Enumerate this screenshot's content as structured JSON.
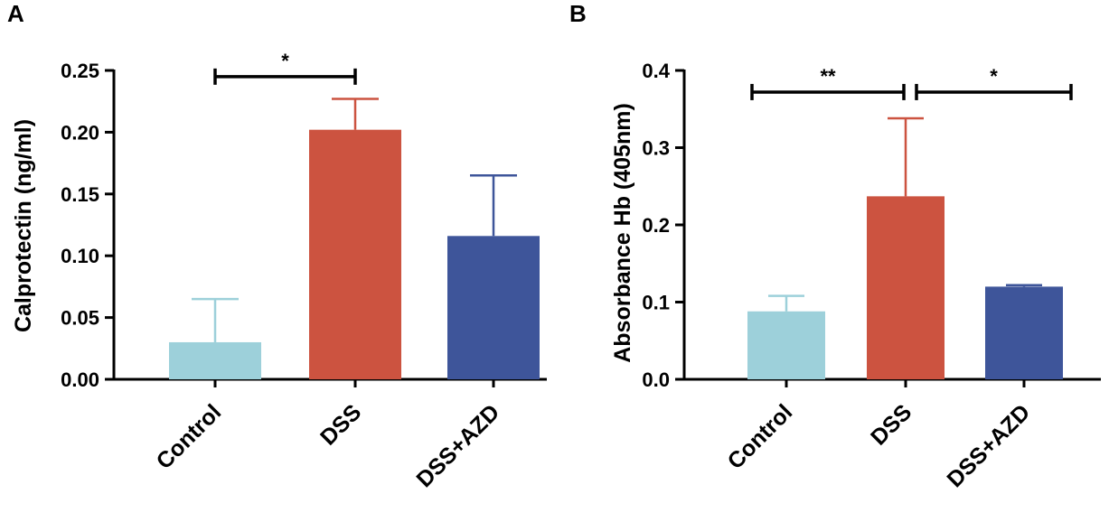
{
  "chart_data": [
    {
      "panel": "A",
      "type": "bar",
      "title": "",
      "xlabel": "",
      "ylabel": "Calprotectin (ng/ml)",
      "ylim": [
        0,
        0.25
      ],
      "yticks": [
        "0.00",
        "0.05",
        "0.10",
        "0.15",
        "0.20",
        "0.25"
      ],
      "categories": [
        "Control",
        "DSS",
        "DSS+AZD"
      ],
      "values": [
        0.03,
        0.202,
        0.116
      ],
      "errors": [
        0.035,
        0.025,
        0.049
      ],
      "colors": [
        "#9dd0da",
        "#cc5340",
        "#3e559a"
      ],
      "significance": [
        {
          "from": 0,
          "to": 1,
          "label": "*",
          "y": 0.245
        }
      ]
    },
    {
      "panel": "B",
      "type": "bar",
      "title": "",
      "xlabel": "",
      "ylabel": "Absorbance Hb  (405nm)",
      "ylim": [
        0,
        0.4
      ],
      "yticks": [
        "0.0",
        "0.1",
        "0.2",
        "0.3",
        "0.4"
      ],
      "categories": [
        "Control",
        "DSS",
        "DSS+AZD"
      ],
      "values": [
        0.088,
        0.237,
        0.12
      ],
      "errors": [
        0.02,
        0.101,
        0.002
      ],
      "colors": [
        "#9dd0da",
        "#cc5340",
        "#3e559a"
      ],
      "significance": [
        {
          "from": 0,
          "to": 1,
          "label": "**",
          "y": 0.372
        },
        {
          "from": 1,
          "to": 2,
          "label": "*",
          "y": 0.372
        }
      ]
    }
  ]
}
